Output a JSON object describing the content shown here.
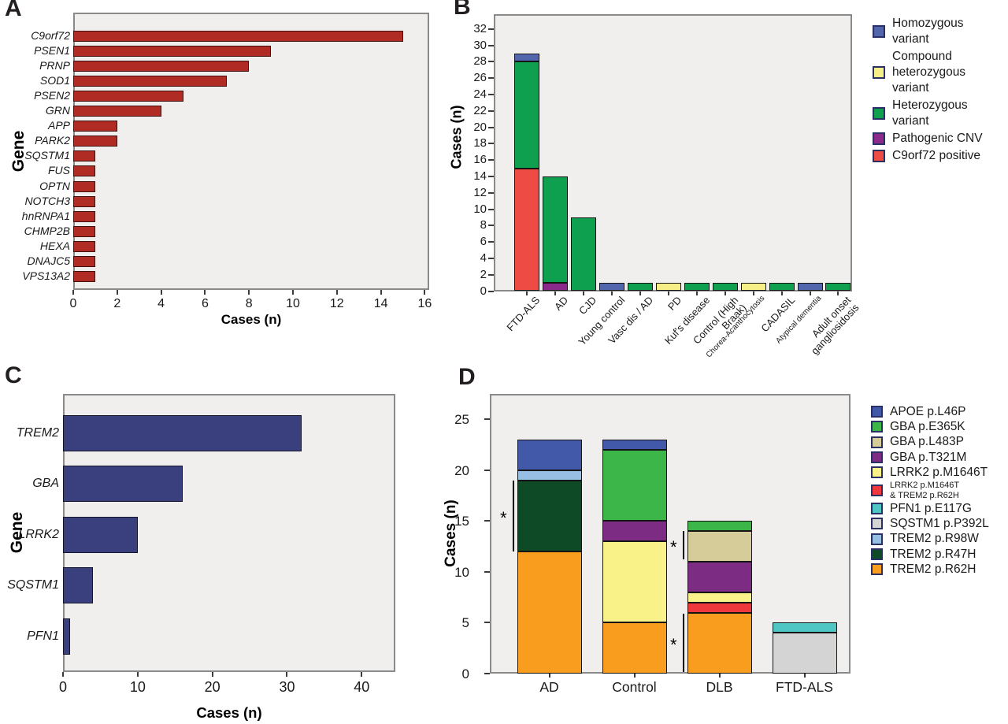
{
  "figure": {
    "background": "#ffffff",
    "plot_background": "#F0EFED",
    "plot_border_color": "#8A8A8A"
  },
  "chart_data": [
    {
      "panel_label": "A",
      "type": "bar",
      "orientation": "horizontal",
      "title": "",
      "xlabel": "Cases (n)",
      "ylabel": "Gene",
      "xlim": [
        0,
        16.2
      ],
      "xticks": [
        0,
        2,
        4,
        6,
        8,
        10,
        12,
        14,
        16
      ],
      "grid": false,
      "bar_color": "#B12B25",
      "bar_border_color": "#3F120F",
      "categories": [
        "C9orf72",
        "PSEN1",
        "PRNP",
        "SOD1",
        "PSEN2",
        "GRN",
        "APP",
        "PARK2",
        "SQSTM1",
        "FUS",
        "OPTN",
        "NOTCH3",
        "hnRNPA1",
        "CHMP2B",
        "HEXA",
        "DNAJC5",
        "VPS13A2"
      ],
      "values": [
        15,
        9,
        8,
        7,
        5,
        4,
        2,
        2,
        1,
        1,
        1,
        1,
        1,
        1,
        1,
        1,
        1
      ]
    },
    {
      "panel_label": "B",
      "type": "stacked-bar",
      "title": "",
      "xlabel": "",
      "ylabel": "Cases (n)",
      "ylim": [
        0,
        33.8
      ],
      "yticks": [
        0,
        2,
        4,
        6,
        8,
        10,
        12,
        14,
        16,
        18,
        20,
        22,
        24,
        26,
        28,
        30,
        32
      ],
      "grid": false,
      "legend_position": "right",
      "legend": [
        {
          "key": "hom",
          "label": "Homozygous\nvariant",
          "color": "#5266AE"
        },
        {
          "key": "comphet",
          "label": "Compound\nheterozygous\nvariant",
          "color": "#F6EF87"
        },
        {
          "key": "het",
          "label": "Heterozygous\nvariant",
          "color": "#0FA04F"
        },
        {
          "key": "cnv",
          "label": "Pathogenic CNV",
          "color": "#8C2A8C"
        },
        {
          "key": "c9",
          "label": "C9orf72 positive",
          "color": "#EF4B45"
        }
      ],
      "bars": [
        {
          "category": "FTD-ALS",
          "segments": [
            {
              "key": "c9",
              "value": 15
            },
            {
              "key": "het",
              "value": 13
            },
            {
              "key": "hom",
              "value": 1
            }
          ]
        },
        {
          "category": "AD",
          "segments": [
            {
              "key": "cnv",
              "value": 1
            },
            {
              "key": "het",
              "value": 13
            }
          ]
        },
        {
          "category": "CJD",
          "segments": [
            {
              "key": "het",
              "value": 9
            }
          ]
        },
        {
          "category": "Young control",
          "segments": [
            {
              "key": "hom",
              "value": 1
            }
          ]
        },
        {
          "category": "Vasc dis / AD",
          "segments": [
            {
              "key": "het",
              "value": 1
            }
          ]
        },
        {
          "category": "PD",
          "segments": [
            {
              "key": "comphet",
              "value": 1
            }
          ]
        },
        {
          "category": "Kuf's disease",
          "segments": [
            {
              "key": "het",
              "value": 1
            }
          ]
        },
        {
          "category": "Control (High\nBraak)",
          "segments": [
            {
              "key": "het",
              "value": 1
            }
          ]
        },
        {
          "category": "Chorea-Acanthocytosis",
          "small_font": true,
          "segments": [
            {
              "key": "comphet",
              "value": 1
            }
          ]
        },
        {
          "category": "CADASIL",
          "segments": [
            {
              "key": "het",
              "value": 1
            }
          ]
        },
        {
          "category": "Atypical dementia",
          "small_font": true,
          "segments": [
            {
              "key": "hom",
              "value": 1
            }
          ]
        },
        {
          "category": "Adult onset\ngangliosidosis",
          "segments": [
            {
              "key": "het",
              "value": 1
            }
          ]
        }
      ]
    },
    {
      "panel_label": "C",
      "type": "bar",
      "orientation": "horizontal",
      "title": "",
      "xlabel": "Cases (n)",
      "ylabel": "Gene",
      "xlim": [
        0,
        44.5
      ],
      "xticks": [
        0,
        10,
        20,
        30,
        40
      ],
      "grid": false,
      "bar_color": "#3A3F7D",
      "bar_border_color": "#14152B",
      "categories": [
        "TREM2",
        "GBA",
        "LRRK2",
        "SQSTM1",
        "PFN1"
      ],
      "values": [
        32,
        16,
        10,
        4,
        1
      ]
    },
    {
      "panel_label": "D",
      "type": "stacked-bar",
      "title": "",
      "xlabel": "",
      "ylabel": "Cases (n)",
      "ylim": [
        0,
        27.5
      ],
      "yticks": [
        0,
        5,
        10,
        15,
        20,
        25
      ],
      "grid": false,
      "legend_position": "right",
      "legend": [
        {
          "key": "APOE",
          "label": "APOE p.L46P",
          "color": "#4258A8"
        },
        {
          "key": "E365K",
          "label": "GBA p.E365K",
          "color": "#3CB649"
        },
        {
          "key": "L483P",
          "label": "GBA p.L483P",
          "color": "#D6CC9A"
        },
        {
          "key": "T321M",
          "label": "GBA p.T321M",
          "color": "#7D2C84"
        },
        {
          "key": "M1646T",
          "label": "LRRK2 p.M1646T",
          "color": "#F8F288"
        },
        {
          "key": "combo",
          "label": "LRRK2 p.M1646T\n& TREM2 p.R62H",
          "color": "#EF383C",
          "small_font": true
        },
        {
          "key": "E117G",
          "label": "PFN1 p.E117G",
          "color": "#4FC6C4"
        },
        {
          "key": "P392L",
          "label": "SQSTM1 p.P392L",
          "color": "#D4D4D4"
        },
        {
          "key": "R98W",
          "label": "TREM2 p.R98W",
          "color": "#97BFE4"
        },
        {
          "key": "R47H",
          "label": "TREM2 p.R47H",
          "color": "#0D4A25"
        },
        {
          "key": "R62H",
          "label": "TREM2 p.R62H",
          "color": "#F99D1E"
        }
      ],
      "bars": [
        {
          "category": "AD",
          "segments": [
            {
              "key": "R62H",
              "value": 12
            },
            {
              "key": "R47H",
              "value": 7
            },
            {
              "key": "R98W",
              "value": 1
            },
            {
              "key": "APOE",
              "value": 3
            }
          ]
        },
        {
          "category": "Control",
          "segments": [
            {
              "key": "R62H",
              "value": 5
            },
            {
              "key": "M1646T",
              "value": 8
            },
            {
              "key": "T321M",
              "value": 2
            },
            {
              "key": "E365K",
              "value": 7
            },
            {
              "key": "APOE",
              "value": 1
            }
          ]
        },
        {
          "category": "DLB",
          "segments": [
            {
              "key": "R62H",
              "value": 6
            },
            {
              "key": "combo",
              "value": 1
            },
            {
              "key": "M1646T",
              "value": 1
            },
            {
              "key": "T321M",
              "value": 3
            },
            {
              "key": "L483P",
              "value": 3
            },
            {
              "key": "E365K",
              "value": 1
            }
          ]
        },
        {
          "category": "FTD-ALS",
          "segments": [
            {
              "key": "P392L",
              "value": 4
            },
            {
              "key": "E117G",
              "value": 1
            }
          ]
        }
      ],
      "significance_brackets": [
        {
          "bar": "AD",
          "from": 12,
          "to": 19,
          "symbol": "*"
        },
        {
          "bar": "DLB",
          "from": 11.2,
          "to": 14,
          "symbol": "*"
        },
        {
          "bar": "DLB",
          "from": 0.15,
          "to": 5.85,
          "symbol": "*"
        }
      ]
    }
  ]
}
